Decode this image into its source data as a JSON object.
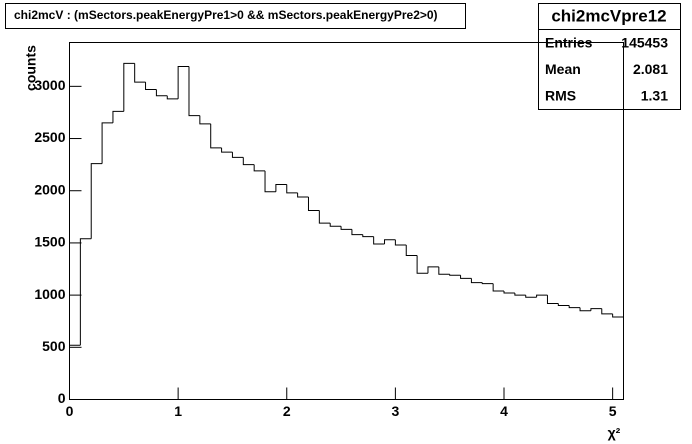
{
  "chart_data": {
    "type": "histogram",
    "title": "chi2mcV : (mSectors.peakEnergyPre1>0 && mSectors.peakEnergyPre2>0)",
    "x_label": "χ²",
    "y_label": "counts",
    "bins": [
      0,
      0.1,
      0.2,
      0.3,
      0.4,
      0.5,
      0.6,
      0.7,
      0.8,
      0.9,
      1.0,
      1.1,
      1.2,
      1.3,
      1.4,
      1.5,
      1.6,
      1.7,
      1.8,
      1.9,
      2.0,
      2.1,
      2.2,
      2.3,
      2.4,
      2.5,
      2.6,
      2.7,
      2.8,
      2.9,
      3.0,
      3.1,
      3.2,
      3.3,
      3.4,
      3.5,
      3.6,
      3.7,
      3.8,
      3.9,
      4.0,
      4.1,
      4.2,
      4.3,
      4.4,
      4.5,
      4.6,
      4.7,
      4.8,
      4.9,
      5.0,
      5.1
    ],
    "counts": [
      520,
      1540,
      2260,
      2650,
      2760,
      3220,
      3040,
      2970,
      2910,
      2880,
      3190,
      2720,
      2640,
      2410,
      2370,
      2320,
      2250,
      2190,
      1990,
      2060,
      1980,
      1940,
      1810,
      1690,
      1660,
      1630,
      1580,
      1560,
      1490,
      1530,
      1480,
      1380,
      1210,
      1270,
      1200,
      1190,
      1160,
      1120,
      1110,
      1040,
      1020,
      1000,
      980,
      1000,
      920,
      900,
      880,
      850,
      870,
      820,
      790
    ],
    "color": "#000000",
    "xlim": [
      0,
      5.1
    ],
    "xticks": [
      0,
      1,
      2,
      3,
      4,
      5
    ],
    "ylim": [
      0,
      3420
    ],
    "yticks": [
      0,
      500,
      1000,
      1500,
      2000,
      2500,
      3000
    ],
    "stats": {
      "title": "chi2mcVpre12",
      "rows": [
        {
          "label": "Entries",
          "value": 145453
        },
        {
          "label": "Mean",
          "value": 2.081
        },
        {
          "label": "RMS",
          "value": 1.31
        }
      ]
    }
  }
}
